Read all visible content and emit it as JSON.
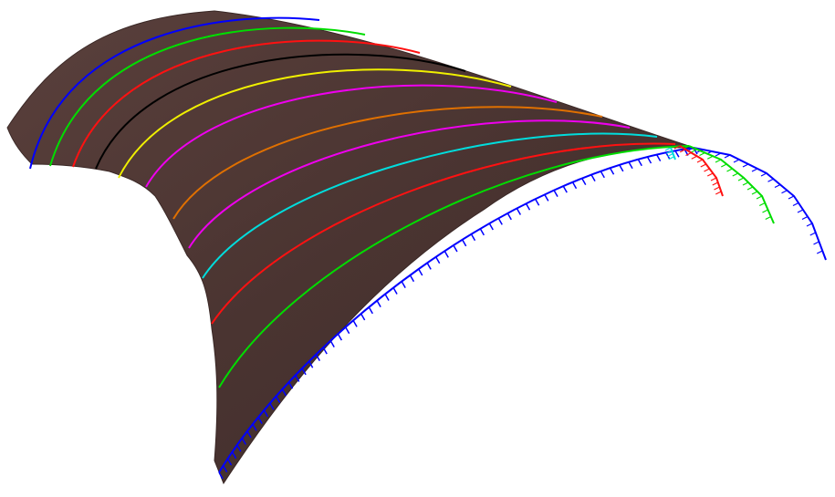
{
  "scene": {
    "background_color": "#ffffff",
    "surface_color": "#4a3431",
    "surface_edge_color": "#3a2826",
    "curve_colors": [
      "#0000ff",
      "#00dd00",
      "#ff1111",
      "#00dddd",
      "#ee00ee",
      "#e07000",
      "#ee00ee",
      "#f0f000",
      "#000000",
      "#ff1111",
      "#00dd00",
      "#0000ff"
    ],
    "normal_vector_colors": {
      "blue": "#0000ff",
      "green": "#00dd00",
      "red": "#ff1111",
      "cyan": "#00dddd"
    }
  }
}
